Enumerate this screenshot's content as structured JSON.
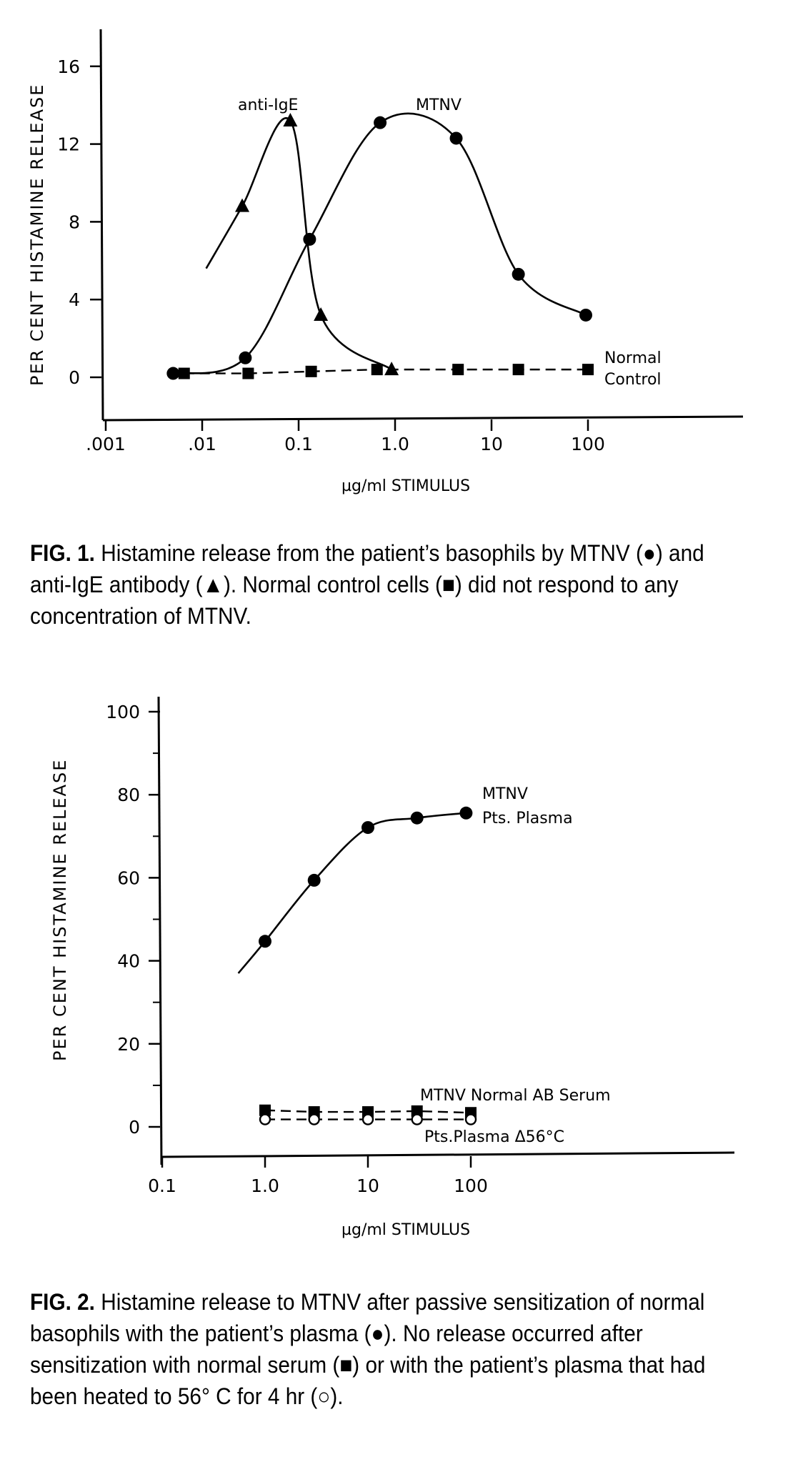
{
  "figure1": {
    "caption_label": "FIG. 1.",
    "caption_text": " Histamine release from the patient’s basophils by MTNV (●) and anti-IgE antibody (▲). Normal control cells (■) did not respond to any concentration of MTNV."
  },
  "figure2": {
    "caption_label": "FIG. 2.",
    "caption_text": " Histamine release to MTNV after passive sensitization of normal basophils with the patient’s plasma (●). No release occurred after sensitization with normal serum (■) or with the patient’s plasma that had been heated to 56° C for 4 hr (○)."
  },
  "chart_data": [
    {
      "type": "line",
      "title": "FIG. 1",
      "xlabel": "µg/ml STIMULUS",
      "ylabel": "PER CENT HISTAMINE RELEASE",
      "xscale": "log",
      "xlim": [
        0.001,
        100
      ],
      "ylim": [
        -2,
        18
      ],
      "xticks": [
        0.001,
        0.01,
        0.1,
        1.0,
        10,
        100
      ],
      "xtick_labels": [
        ".001",
        ".01",
        "0.1",
        "1.0",
        "10",
        "100"
      ],
      "yticks": [
        0,
        4,
        8,
        12,
        16
      ],
      "ytick_labels": [
        "0",
        "4",
        "8",
        "12",
        "16"
      ],
      "grid": false,
      "series": [
        {
          "name": "MTNV",
          "marker": "filled-circle",
          "line": "solid",
          "x": [
            0.005,
            0.028,
            0.13,
            0.7,
            4.3,
            19,
            95
          ],
          "y": [
            0.2,
            1.0,
            7.1,
            13.1,
            12.3,
            5.3,
            3.2
          ],
          "label": "MTNV"
        },
        {
          "name": "anti-IgE",
          "marker": "filled-triangle",
          "line": "solid",
          "x": [
            0.026,
            0.082,
            0.17,
            0.92
          ],
          "y": [
            8.8,
            13.2,
            3.2,
            0.4
          ],
          "label": "anti-IgE"
        },
        {
          "name": "Normal Control",
          "marker": "filled-square",
          "line": "dashed",
          "x": [
            0.0065,
            0.03,
            0.135,
            0.65,
            4.5,
            19,
            100
          ],
          "y": [
            0.2,
            0.2,
            0.3,
            0.4,
            0.4,
            0.4,
            0.4
          ],
          "label": "Normal Control"
        }
      ]
    },
    {
      "type": "line",
      "title": "FIG. 2",
      "xlabel": "µg/ml STIMULUS",
      "ylabel": "PER CENT HISTAMINE RELEASE",
      "xscale": "log",
      "xlim": [
        0.1,
        1000
      ],
      "ylim": [
        -7,
        105
      ],
      "xticks": [
        0.1,
        1.0,
        10,
        100
      ],
      "xtick_labels": [
        "0.1",
        "1.0",
        "10",
        "100"
      ],
      "yticks": [
        0,
        20,
        40,
        60,
        80,
        100
      ],
      "ytick_labels": [
        "0",
        "20",
        "40",
        "60",
        "80",
        "100"
      ],
      "grid": false,
      "series": [
        {
          "name": "MTNV Pts. Plasma",
          "marker": "filled-circle",
          "line": "solid",
          "x": [
            1,
            3,
            10,
            30,
            90
          ],
          "y": [
            44.7,
            59.4,
            72.1,
            74.4,
            75.6
          ],
          "label": "MTNV Pts. Plasma"
        },
        {
          "name": "MTNV Normal AB Serum",
          "marker": "filled-square",
          "line": "dashed",
          "x": [
            1,
            3,
            10,
            30,
            100
          ],
          "y": [
            4.0,
            3.6,
            3.6,
            3.8,
            3.4
          ],
          "label": "MTNV Normal AB Serum"
        },
        {
          "name": "Pts.Plasma Δ56°C",
          "marker": "open-circle",
          "line": "dashed",
          "x": [
            1,
            3,
            10,
            30,
            100
          ],
          "y": [
            1.8,
            1.8,
            1.8,
            1.8,
            1.8
          ],
          "label": "Pts.Plasma Δ56°C"
        }
      ]
    }
  ]
}
